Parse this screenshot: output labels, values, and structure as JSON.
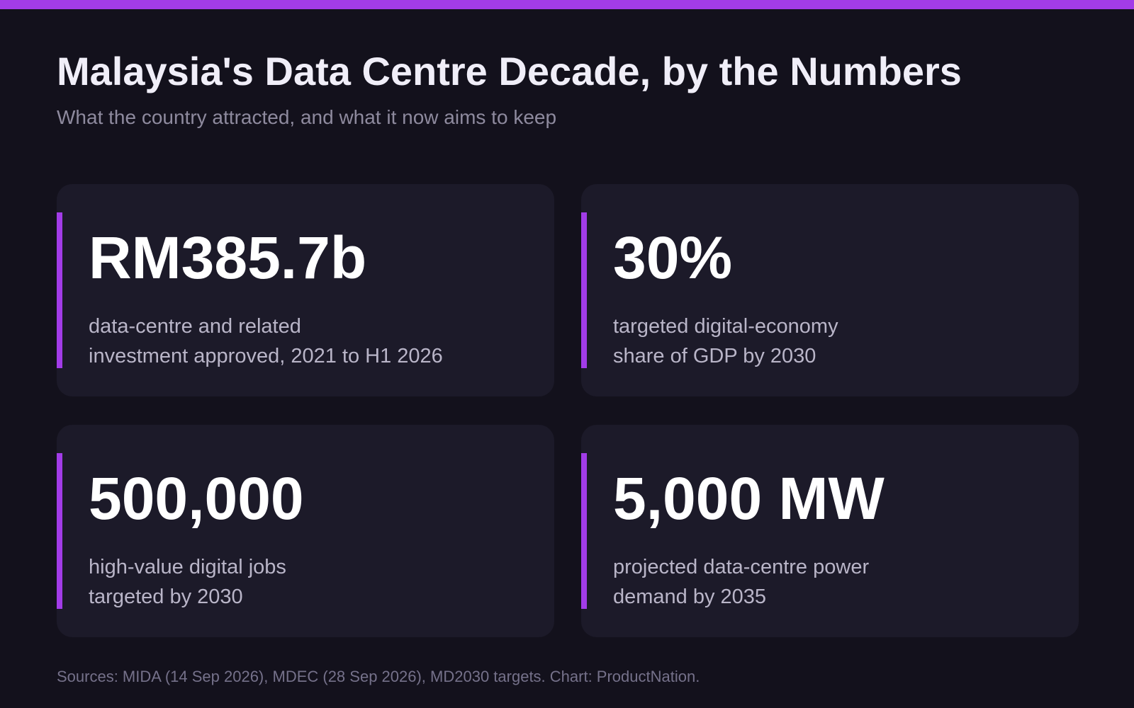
{
  "colors": {
    "accent": "#a23ce8",
    "background": "#13111c",
    "card": "#1c1a29"
  },
  "title": "Malaysia's Data Centre Decade, by the Numbers",
  "subtitle": "What the country attracted, and what it now aims to keep",
  "stats": [
    {
      "value": "RM385.7b",
      "label_line1": "data-centre and related",
      "label_line2": "investment approved, 2021 to H1 2026"
    },
    {
      "value": "30%",
      "label_line1": "targeted digital-economy",
      "label_line2": "share of GDP by 2030"
    },
    {
      "value": "500,000",
      "label_line1": "high-value digital jobs",
      "label_line2": "targeted by 2030"
    },
    {
      "value": "5,000 MW",
      "label_line1": "projected data-centre power",
      "label_line2": "demand by 2035"
    }
  ],
  "footer": "Sources: MIDA (14 Sep 2026), MDEC (28 Sep 2026), MD2030 targets. Chart: ProductNation."
}
